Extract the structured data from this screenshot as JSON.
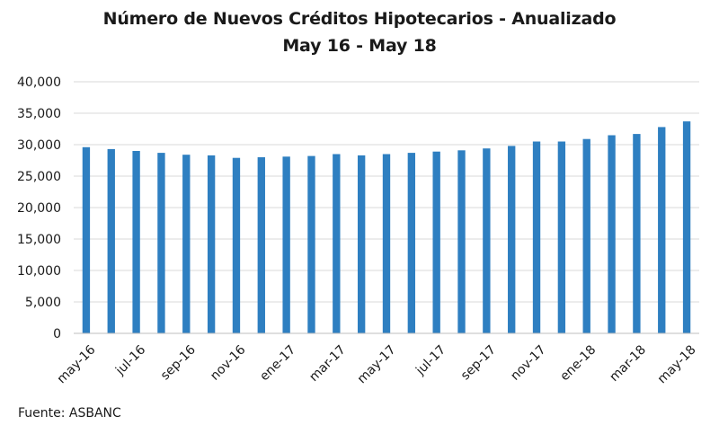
{
  "chart_data": {
    "type": "bar",
    "title": "Número de Nuevos Créditos Hipotecarios - Anualizado",
    "subtitle": "May 16 - May 18",
    "xlabel": "",
    "ylabel": "",
    "ylim": [
      0,
      40000
    ],
    "yticks": [
      "0",
      "5,000",
      "10,000",
      "15,000",
      "20,000",
      "25,000",
      "30,000",
      "35,000",
      "40,000"
    ],
    "ytick_values": [
      0,
      5000,
      10000,
      15000,
      20000,
      25000,
      30000,
      35000,
      40000
    ],
    "grid": true,
    "bar_color": "#2E7FC1",
    "categories": [
      "may-16",
      "jun-16",
      "jul-16",
      "ago-16",
      "sep-16",
      "oct-16",
      "nov-16",
      "dic-16",
      "ene-17",
      "feb-17",
      "mar-17",
      "abr-17",
      "may-17",
      "jun-17",
      "jul-17",
      "ago-17",
      "sep-17",
      "oct-17",
      "nov-17",
      "dic-17",
      "ene-18",
      "feb-18",
      "mar-18",
      "abr-18",
      "may-18"
    ],
    "xtick_labels": [
      "may-16",
      "",
      "jul-16",
      "",
      "sep-16",
      "",
      "nov-16",
      "",
      "ene-17",
      "",
      "mar-17",
      "",
      "may-17",
      "",
      "jul-17",
      "",
      "sep-17",
      "",
      "nov-17",
      "",
      "ene-18",
      "",
      "mar-18",
      "",
      "may-18"
    ],
    "values": [
      29600,
      29300,
      29000,
      28700,
      28400,
      28300,
      27900,
      28000,
      28100,
      28200,
      28500,
      28300,
      28500,
      28700,
      28900,
      29100,
      29400,
      29800,
      30500,
      30500,
      30900,
      31500,
      31700,
      32800,
      33700
    ]
  },
  "source": "Fuente: ASBANC"
}
